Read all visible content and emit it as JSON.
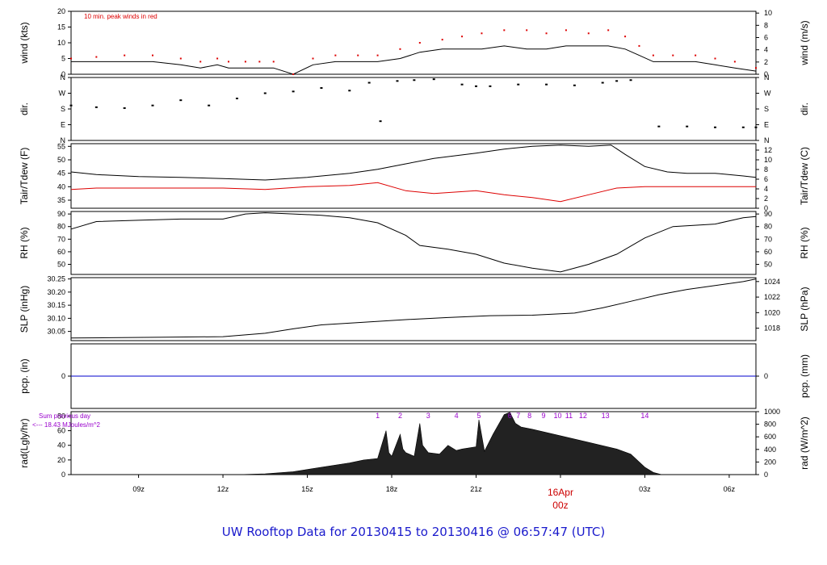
{
  "title": "UW Rooftop Data for 20130415  to  20130416 @ 06:57:47  (UTC)",
  "colors": {
    "primary": "#000000",
    "dewpoint": "#dd0000",
    "peak_wind": "#dd0000",
    "precip": "#0000cc",
    "title": "#1a1acc",
    "sum_note": "#9900cc",
    "day_marker": "#cc0000"
  },
  "chart_data": {
    "type": "line",
    "time_axis": {
      "range_hours": [
        6.6,
        30.95
      ],
      "ticks": [
        {
          "label": "09z",
          "hour": 9
        },
        {
          "label": "12z",
          "hour": 12
        },
        {
          "label": "15z",
          "hour": 15
        },
        {
          "label": "18z",
          "hour": 18
        },
        {
          "label": "21z",
          "hour": 21
        },
        {
          "label": "00z",
          "hour": 24
        },
        {
          "label": "03z",
          "hour": 27
        },
        {
          "label": "06z",
          "hour": 30
        }
      ],
      "day_marker": {
        "label": "16Apr",
        "hour": 24
      }
    },
    "panels": [
      {
        "id": "wind",
        "left_label": "wind (kts)",
        "right_label": "wind (m/s)",
        "left_ticks": [
          "0",
          "5",
          "10",
          "15",
          "20"
        ],
        "left_range": [
          0,
          20
        ],
        "right_ticks": [
          "0",
          "2",
          "4",
          "6",
          "8",
          "10"
        ],
        "right_range": [
          0,
          10.29
        ],
        "annotation": "10 min. peak winds in red",
        "series": [
          {
            "name": "wind",
            "hours": [
              6.6,
              7.5,
              8.5,
              9.5,
              10.5,
              11.2,
              11.8,
              12.2,
              12.8,
              13.3,
              13.8,
              14.5,
              15.2,
              16.0,
              16.8,
              17.5,
              18.3,
              19.0,
              19.8,
              20.5,
              21.2,
              22.0,
              22.8,
              23.5,
              24.2,
              25.0,
              25.7,
              26.3,
              26.8,
              27.3,
              28.0,
              28.8,
              29.5,
              30.2,
              30.95
            ],
            "values": [
              4,
              4,
              4,
              4,
              3,
              2,
              3,
              2,
              2,
              2,
              2,
              0,
              3,
              4,
              4,
              4,
              5,
              7,
              8,
              8,
              8,
              9,
              8,
              8,
              9,
              9,
              9,
              8,
              6,
              4,
              4,
              4,
              3,
              2,
              1
            ]
          },
          {
            "name": "10 min. peak winds",
            "hours": [
              6.6,
              7.5,
              8.5,
              9.5,
              10.5,
              11.2,
              11.8,
              12.2,
              12.8,
              13.3,
              13.8,
              14.5,
              15.2,
              16.0,
              16.8,
              17.5,
              18.3,
              19.0,
              19.8,
              20.5,
              21.2,
              22.0,
              22.8,
              23.5,
              24.2,
              25.0,
              25.7,
              26.3,
              26.8,
              27.3,
              28.0,
              28.8,
              29.5,
              30.2,
              30.95
            ],
            "values": [
              5,
              5.5,
              6,
              6,
              5,
              4,
              5,
              4,
              4,
              4,
              4,
              0,
              5,
              6,
              6,
              6,
              8,
              10,
              11,
              12,
              13,
              14,
              14,
              13,
              14,
              13,
              14,
              12,
              9,
              6,
              6,
              6,
              5,
              4,
              2
            ]
          }
        ]
      },
      {
        "id": "dir",
        "left_label": "dir.",
        "right_label": "dir.",
        "left_ticks": [
          "N",
          "E",
          "S",
          "W",
          "N"
        ],
        "left_range": [
          0,
          360
        ],
        "right_ticks": [
          "N",
          "E",
          "S",
          "W",
          "N"
        ],
        "right_range": [
          0,
          360
        ],
        "series": [
          {
            "name": "direction",
            "hours": [
              6.6,
              7.5,
              8.5,
              9.5,
              10.5,
              11.5,
              12.5,
              13.5,
              14.5,
              15.5,
              16.5,
              17.2,
              17.6,
              18.2,
              18.8,
              19.5,
              20.5,
              21.0,
              21.5,
              22.5,
              23.5,
              24.5,
              25.5,
              26.0,
              26.5,
              27.5,
              28.5,
              29.5,
              30.5,
              30.95
            ],
            "values": [
              200,
              190,
              185,
              200,
              230,
              200,
              240,
              270,
              280,
              300,
              285,
              330,
              110,
              340,
              345,
              350,
              320,
              310,
              310,
              320,
              320,
              315,
              330,
              340,
              345,
              80,
              80,
              75,
              75,
              75
            ]
          }
        ]
      },
      {
        "id": "temp",
        "left_label": "Tair/Tdew (F)",
        "right_label": "Tair/Tdew (C)",
        "left_ticks": [
          "35",
          "40",
          "45",
          "50",
          "55"
        ],
        "left_range": [
          32,
          56
        ],
        "right_ticks": [
          "0",
          "2",
          "4",
          "6",
          "8",
          "10",
          "12"
        ],
        "right_range": [
          0,
          13.33
        ],
        "series": [
          {
            "name": "Tair",
            "hours": [
              6.6,
              7.5,
              9,
              10.5,
              12,
              13.5,
              15,
              16.5,
              17.5,
              18.5,
              19.5,
              21,
              22,
              23,
              24,
              25,
              25.8,
              26.3,
              27,
              27.8,
              28.5,
              29.5,
              30.5,
              30.95
            ],
            "values": [
              45.5,
              44.5,
              43.8,
              43.5,
              43,
              42.5,
              43.5,
              45,
              46.5,
              48.5,
              50.5,
              52.5,
              54,
              55,
              55.5,
              55,
              55.5,
              52,
              47.5,
              45.5,
              45,
              45,
              44,
              43.5
            ]
          },
          {
            "name": "Tdew",
            "hours": [
              6.6,
              7.5,
              9,
              10.5,
              12,
              13.5,
              15,
              16.5,
              17.5,
              18.5,
              19.5,
              21,
              22,
              23,
              24,
              25,
              26,
              27,
              28,
              29,
              30,
              30.95
            ],
            "values": [
              39,
              39.5,
              39.5,
              39.5,
              39.5,
              39,
              40,
              40.5,
              41.5,
              38.5,
              37.5,
              38.5,
              37,
              36,
              34.5,
              37,
              39.5,
              40,
              40,
              40,
              40,
              40
            ]
          }
        ]
      },
      {
        "id": "rh",
        "left_label": "RH (%)",
        "right_label": "RH (%)",
        "left_ticks": [
          "50",
          "60",
          "70",
          "80",
          "90"
        ],
        "left_range": [
          42,
          92
        ],
        "right_ticks": [
          "50",
          "60",
          "70",
          "80",
          "90"
        ],
        "right_range": [
          42,
          92
        ],
        "series": [
          {
            "name": "RH",
            "hours": [
              6.6,
              7.5,
              9,
              10.5,
              12,
              12.8,
              13.5,
              14.5,
              15.5,
              16.5,
              17.5,
              18.5,
              19,
              20,
              21,
              22,
              23,
              24,
              25,
              26,
              27,
              28,
              29.5,
              30.5,
              30.95
            ],
            "values": [
              78,
              84,
              85,
              86,
              86,
              90,
              91,
              90,
              89,
              87,
              83,
              73,
              65,
              62,
              58,
              51,
              47,
              44,
              50,
              58,
              71,
              80,
              82,
              87,
              88
            ]
          }
        ]
      },
      {
        "id": "slp",
        "left_label": "SLP (inHg)",
        "right_label": "SLP (hPa)",
        "left_ticks": [
          "30.05",
          "30.10",
          "30.15",
          "30.20",
          "30.25"
        ],
        "left_range": [
          30.015,
          30.255
        ],
        "right_ticks": [
          "1018",
          "1020",
          "1022",
          "1024"
        ],
        "right_range": [
          1016.4,
          1024.5
        ],
        "series": [
          {
            "name": "SLP",
            "hours": [
              6.6,
              8,
              10,
              12,
              13.5,
              14.5,
              15.5,
              17,
              18.5,
              20,
              21.5,
              23,
              24.5,
              25.5,
              26.5,
              27.5,
              28.5,
              29.5,
              30.5,
              30.95
            ],
            "values": [
              30.025,
              30.026,
              30.028,
              30.03,
              30.043,
              30.06,
              30.075,
              30.085,
              30.095,
              30.103,
              30.11,
              30.112,
              30.12,
              30.14,
              30.165,
              30.19,
              30.21,
              30.225,
              30.24,
              30.25
            ]
          }
        ]
      },
      {
        "id": "pcp",
        "left_label": "pcp. (in)",
        "right_label": "pcp. (mm)",
        "left_ticks": [
          "0"
        ],
        "left_range": [
          -1,
          1
        ],
        "right_ticks": [
          "0"
        ],
        "right_range": [
          -1,
          1
        ],
        "series": [
          {
            "name": "precip",
            "hours": [
              6.6,
              30.95
            ],
            "values": [
              0,
              0
            ]
          }
        ]
      },
      {
        "id": "rad",
        "left_label": "rad(Lgly/hr)",
        "right_label": "rad (W/m^2)",
        "left_ticks": [
          "0",
          "20",
          "40",
          "60",
          "80"
        ],
        "left_range": [
          0,
          86
        ],
        "right_ticks": [
          "0",
          "200",
          "400",
          "600",
          "800",
          "1000"
        ],
        "right_range": [
          0,
          1000
        ],
        "sum_note_line1": "Sum previous day",
        "sum_note_line2": "<--- 18.43 MJoules/m^2",
        "markers": [
          {
            "label": "1",
            "hour": 17.5
          },
          {
            "label": "2",
            "hour": 18.3
          },
          {
            "label": "3",
            "hour": 19.3
          },
          {
            "label": "4",
            "hour": 20.3
          },
          {
            "label": "5",
            "hour": 21.1
          },
          {
            "label": "6",
            "hour": 22.2
          },
          {
            "label": "7",
            "hour": 22.5
          },
          {
            "label": "8",
            "hour": 22.9
          },
          {
            "label": "9",
            "hour": 23.4
          },
          {
            "label": "10",
            "hour": 23.9
          },
          {
            "label": "11",
            "hour": 24.3
          },
          {
            "label": "12",
            "hour": 24.8
          },
          {
            "label": "13",
            "hour": 25.6
          },
          {
            "label": "14",
            "hour": 27.0
          }
        ],
        "series": [
          {
            "name": "radiation",
            "hours": [
              6.6,
              12.5,
              13.5,
              14.5,
              15.5,
              16.5,
              17.0,
              17.5,
              17.8,
              17.9,
              18.0,
              18.3,
              18.4,
              18.5,
              18.8,
              19.0,
              19.1,
              19.3,
              19.7,
              20.0,
              20.3,
              20.5,
              21.0,
              21.1,
              21.3,
              21.6,
              22.0,
              22.2,
              22.4,
              22.6,
              23.0,
              24.0,
              25.0,
              26.0,
              26.5,
              27.0,
              27.3,
              27.6,
              30.95
            ],
            "values": [
              0,
              0,
              1,
              4,
              10,
              16,
              20,
              22,
              60,
              30,
              25,
              55,
              35,
              30,
              25,
              70,
              40,
              30,
              28,
              40,
              33,
              35,
              38,
              75,
              32,
              55,
              82,
              85,
              70,
              65,
              62,
              53,
              44,
              35,
              28,
              10,
              3,
              0,
              0
            ]
          }
        ]
      }
    ]
  }
}
